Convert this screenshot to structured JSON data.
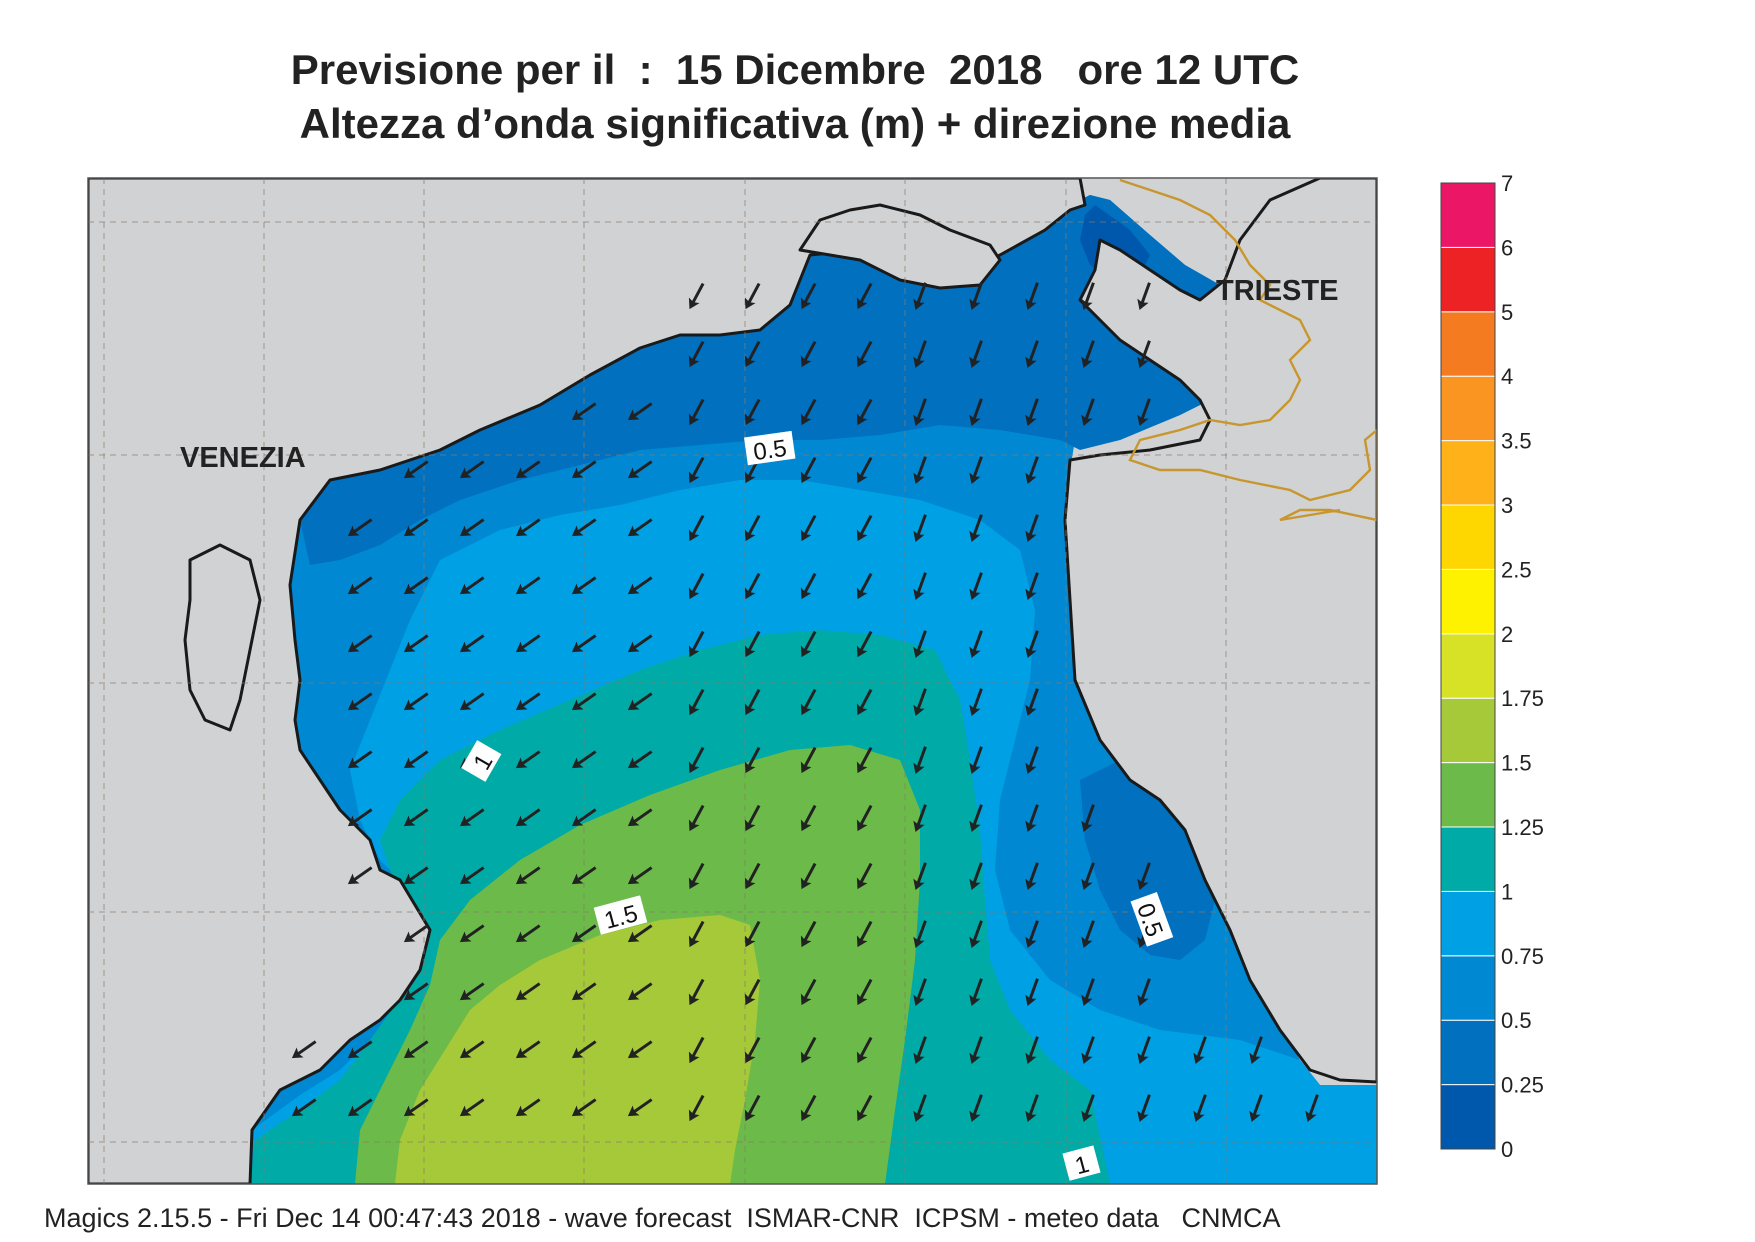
{
  "title": {
    "line1": "Previsione per il  :  15 Dicembre  2018   ore 12 UTC",
    "line2": "Altezza d’onda significativa (m) + direzione media"
  },
  "cities": {
    "venezia": "VENEZIA",
    "trieste": "TRIESTE"
  },
  "contour_labels": {
    "c05_north": "0.5",
    "c1_west": "1",
    "c15": "1.5",
    "c05_east": "0.5",
    "c1_south": "1"
  },
  "legend": {
    "unit": "m",
    "levels": [
      {
        "value": "0",
        "color": "#0058ad"
      },
      {
        "value": "0.25",
        "color": "#0070bf"
      },
      {
        "value": "0.5",
        "color": "#0088d2"
      },
      {
        "value": "0.75",
        "color": "#00a0e4"
      },
      {
        "value": "1",
        "color": "#00aaa6"
      },
      {
        "value": "1.25",
        "color": "#6cbb4a"
      },
      {
        "value": "1.5",
        "color": "#a6c93a"
      },
      {
        "value": "1.75",
        "color": "#d7e126"
      },
      {
        "value": "2",
        "color": "#fff200"
      },
      {
        "value": "2.5",
        "color": "#ffd700"
      },
      {
        "value": "3",
        "color": "#ffb119"
      },
      {
        "value": "3.5",
        "color": "#f99520"
      },
      {
        "value": "4",
        "color": "#f47b20"
      },
      {
        "value": "5",
        "color": "#ed2224"
      },
      {
        "value": "6",
        "color": "#ec1666"
      },
      {
        "value": "7",
        "color": ""
      }
    ]
  },
  "colors": {
    "land": "#d1d2d4",
    "coast": "#1a1a1a",
    "border": "#c8962e",
    "grid": "#8a7a6a",
    "arrow": "#222222"
  },
  "footer": "Magics 2.15.5 - Fri Dec 14 00:47:43 2018 - wave forecast  ISMAR-CNR  ICPSM - meteo data   CNMCA"
}
